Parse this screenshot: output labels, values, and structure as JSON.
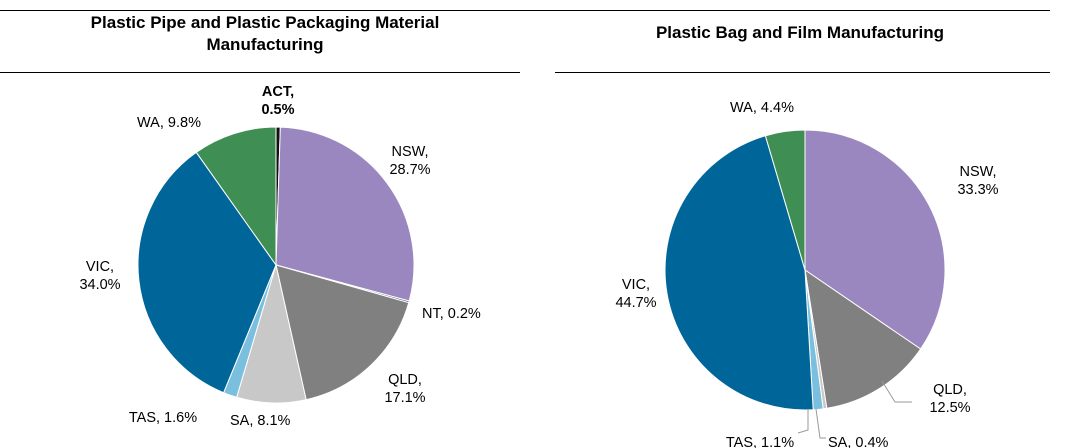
{
  "chart_data": [
    {
      "type": "pie",
      "title": "Plastic Pipe and Plastic Packaging Material Manufacturing",
      "title_lines": [
        "Plastic Pipe and Plastic Packaging Material",
        "Manufacturing"
      ],
      "unit": "%",
      "slices": [
        {
          "name": "ACT",
          "value": 0.5,
          "label_lines": [
            "ACT,",
            "0.5%"
          ],
          "color": "#111111",
          "bold": true
        },
        {
          "name": "NSW",
          "value": 28.7,
          "label_lines": [
            "NSW,",
            "28.7%"
          ],
          "color": "#9b87c0"
        },
        {
          "name": "NT",
          "value": 0.2,
          "label_lines": [
            "NT, 0.2%"
          ],
          "color": "#5a6a8a"
        },
        {
          "name": "QLD",
          "value": 17.1,
          "label_lines": [
            "QLD,",
            "17.1%"
          ],
          "color": "#808080"
        },
        {
          "name": "SA",
          "value": 8.1,
          "label_lines": [
            "SA, 8.1%"
          ],
          "color": "#c8c8c8"
        },
        {
          "name": "TAS",
          "value": 1.6,
          "label_lines": [
            "TAS, 1.6%"
          ],
          "color": "#7bbfdf"
        },
        {
          "name": "VIC",
          "value": 34.0,
          "label_lines": [
            "VIC,",
            "34.0%"
          ],
          "color": "#006699"
        },
        {
          "name": "WA",
          "value": 9.8,
          "label_lines": [
            "WA, 9.8%"
          ],
          "color": "#3f8f55"
        }
      ]
    },
    {
      "type": "pie",
      "title": "Plastic Bag and Film Manufacturing",
      "title_lines": [
        "Plastic Bag and Film Manufacturing"
      ],
      "unit": "%",
      "slices": [
        {
          "name": "NSW",
          "value": 33.3,
          "label_lines": [
            "NSW,",
            "33.3%"
          ],
          "color": "#9b87c0"
        },
        {
          "name": "QLD",
          "value": 12.5,
          "label_lines": [
            "QLD,",
            "12.5%"
          ],
          "color": "#808080"
        },
        {
          "name": "SA",
          "value": 0.4,
          "label_lines": [
            "SA, 0.4%"
          ],
          "color": "#c8c8c8"
        },
        {
          "name": "TAS",
          "value": 1.1,
          "label_lines": [
            "TAS, 1.1%"
          ],
          "color": "#7bbfdf"
        },
        {
          "name": "VIC",
          "value": 44.7,
          "label_lines": [
            "VIC,",
            "44.7%"
          ],
          "color": "#006699"
        },
        {
          "name": "WA",
          "value": 4.4,
          "label_lines": [
            "WA, 4.4%"
          ],
          "color": "#3f8f55"
        }
      ]
    }
  ]
}
